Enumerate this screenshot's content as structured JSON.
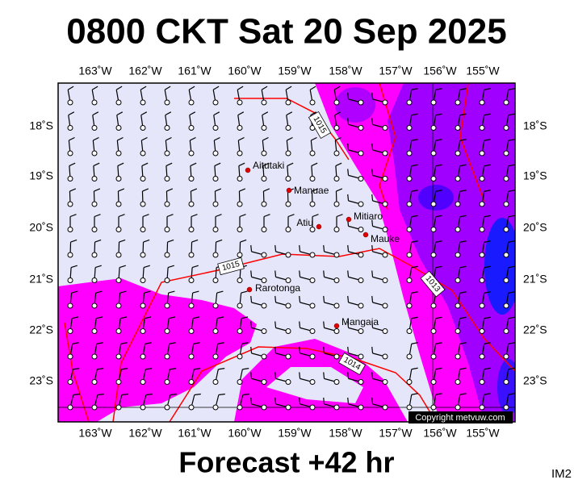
{
  "header": {
    "title": "0800 CKT Sat 20 Sep 2025"
  },
  "map": {
    "lon_labels": [
      "163˚W",
      "162˚W",
      "161˚W",
      "160˚W",
      "159˚W",
      "158˚W",
      "157˚W",
      "156˚W",
      "155˚W"
    ],
    "lat_labels": [
      "18˚S",
      "19˚S",
      "20˚S",
      "21˚S",
      "22˚S",
      "23˚S"
    ],
    "places": [
      {
        "name": "Aitutaki"
      },
      {
        "name": "Manuae"
      },
      {
        "name": "Atiu"
      },
      {
        "name": "Mitiaro"
      },
      {
        "name": "Mauke"
      },
      {
        "name": "Rarotonga"
      },
      {
        "name": "Mangaia"
      }
    ],
    "isobar_labels": [
      "1015",
      "1015",
      "1014",
      "1013"
    ],
    "credit": "Copyright metvuw.com"
  },
  "footer": {
    "forecast": "Forecast +42 hr",
    "code": "IM2"
  }
}
